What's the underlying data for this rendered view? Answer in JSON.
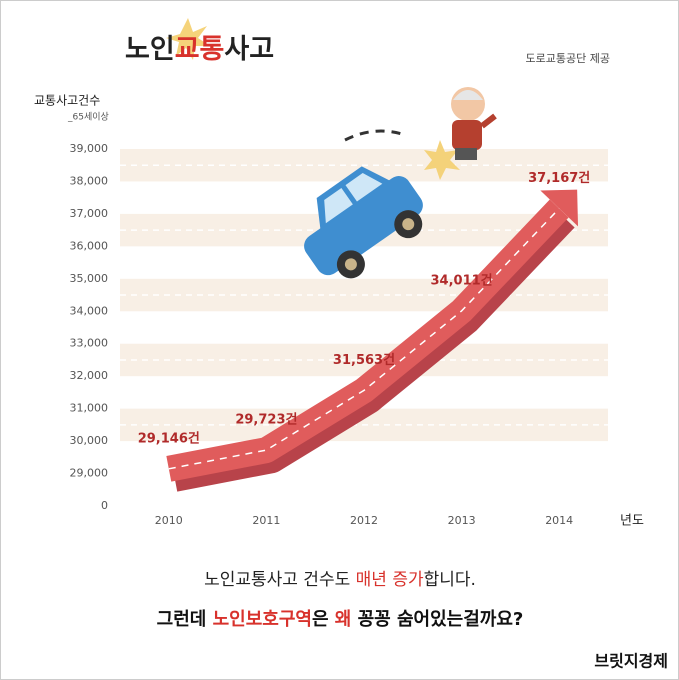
{
  "header": {
    "title_parts": [
      "노인",
      "교통",
      "사고"
    ],
    "source": "도로교통공단 제공"
  },
  "chart_data": {
    "type": "line",
    "y_axis_label": "교통사고건수",
    "y_axis_sublabel": "_65세이상",
    "x_axis_label": "년도",
    "categories": [
      "2010",
      "2011",
      "2012",
      "2013",
      "2014"
    ],
    "values": [
      29146,
      29723,
      31563,
      34011,
      37167
    ],
    "value_labels": [
      "29,146건",
      "29,723건",
      "31,563건",
      "34,011건",
      "37,167건"
    ],
    "color": "#e05c5c",
    "ylim": [
      0,
      39000
    ],
    "y_axis_break": true,
    "yticks": [
      0,
      {
        "value": 29000,
        "label": "29,000"
      },
      {
        "value": 30000,
        "label": "30,000"
      },
      {
        "value": 31000,
        "label": "31,000"
      },
      {
        "value": 32000,
        "label": "32,000"
      },
      {
        "value": 33000,
        "label": "33,000"
      },
      {
        "value": 34000,
        "label": "34,000"
      },
      {
        "value": 35000,
        "label": "35,000"
      },
      {
        "value": 36000,
        "label": "36,000"
      },
      {
        "value": 37000,
        "label": "37,000"
      },
      {
        "value": 38000,
        "label": "38,000"
      },
      {
        "value": 39000,
        "label": "39,000"
      }
    ],
    "bands": true
  },
  "caption": {
    "line1": [
      "노인교통사고 건수도 ",
      "매년 증가",
      "합니다."
    ],
    "line2": [
      "그런데 ",
      "노인보호구역",
      "은 ",
      "왜",
      " 꽁꽁 숨어있는걸까요?"
    ]
  },
  "brand": "브릿지경제"
}
